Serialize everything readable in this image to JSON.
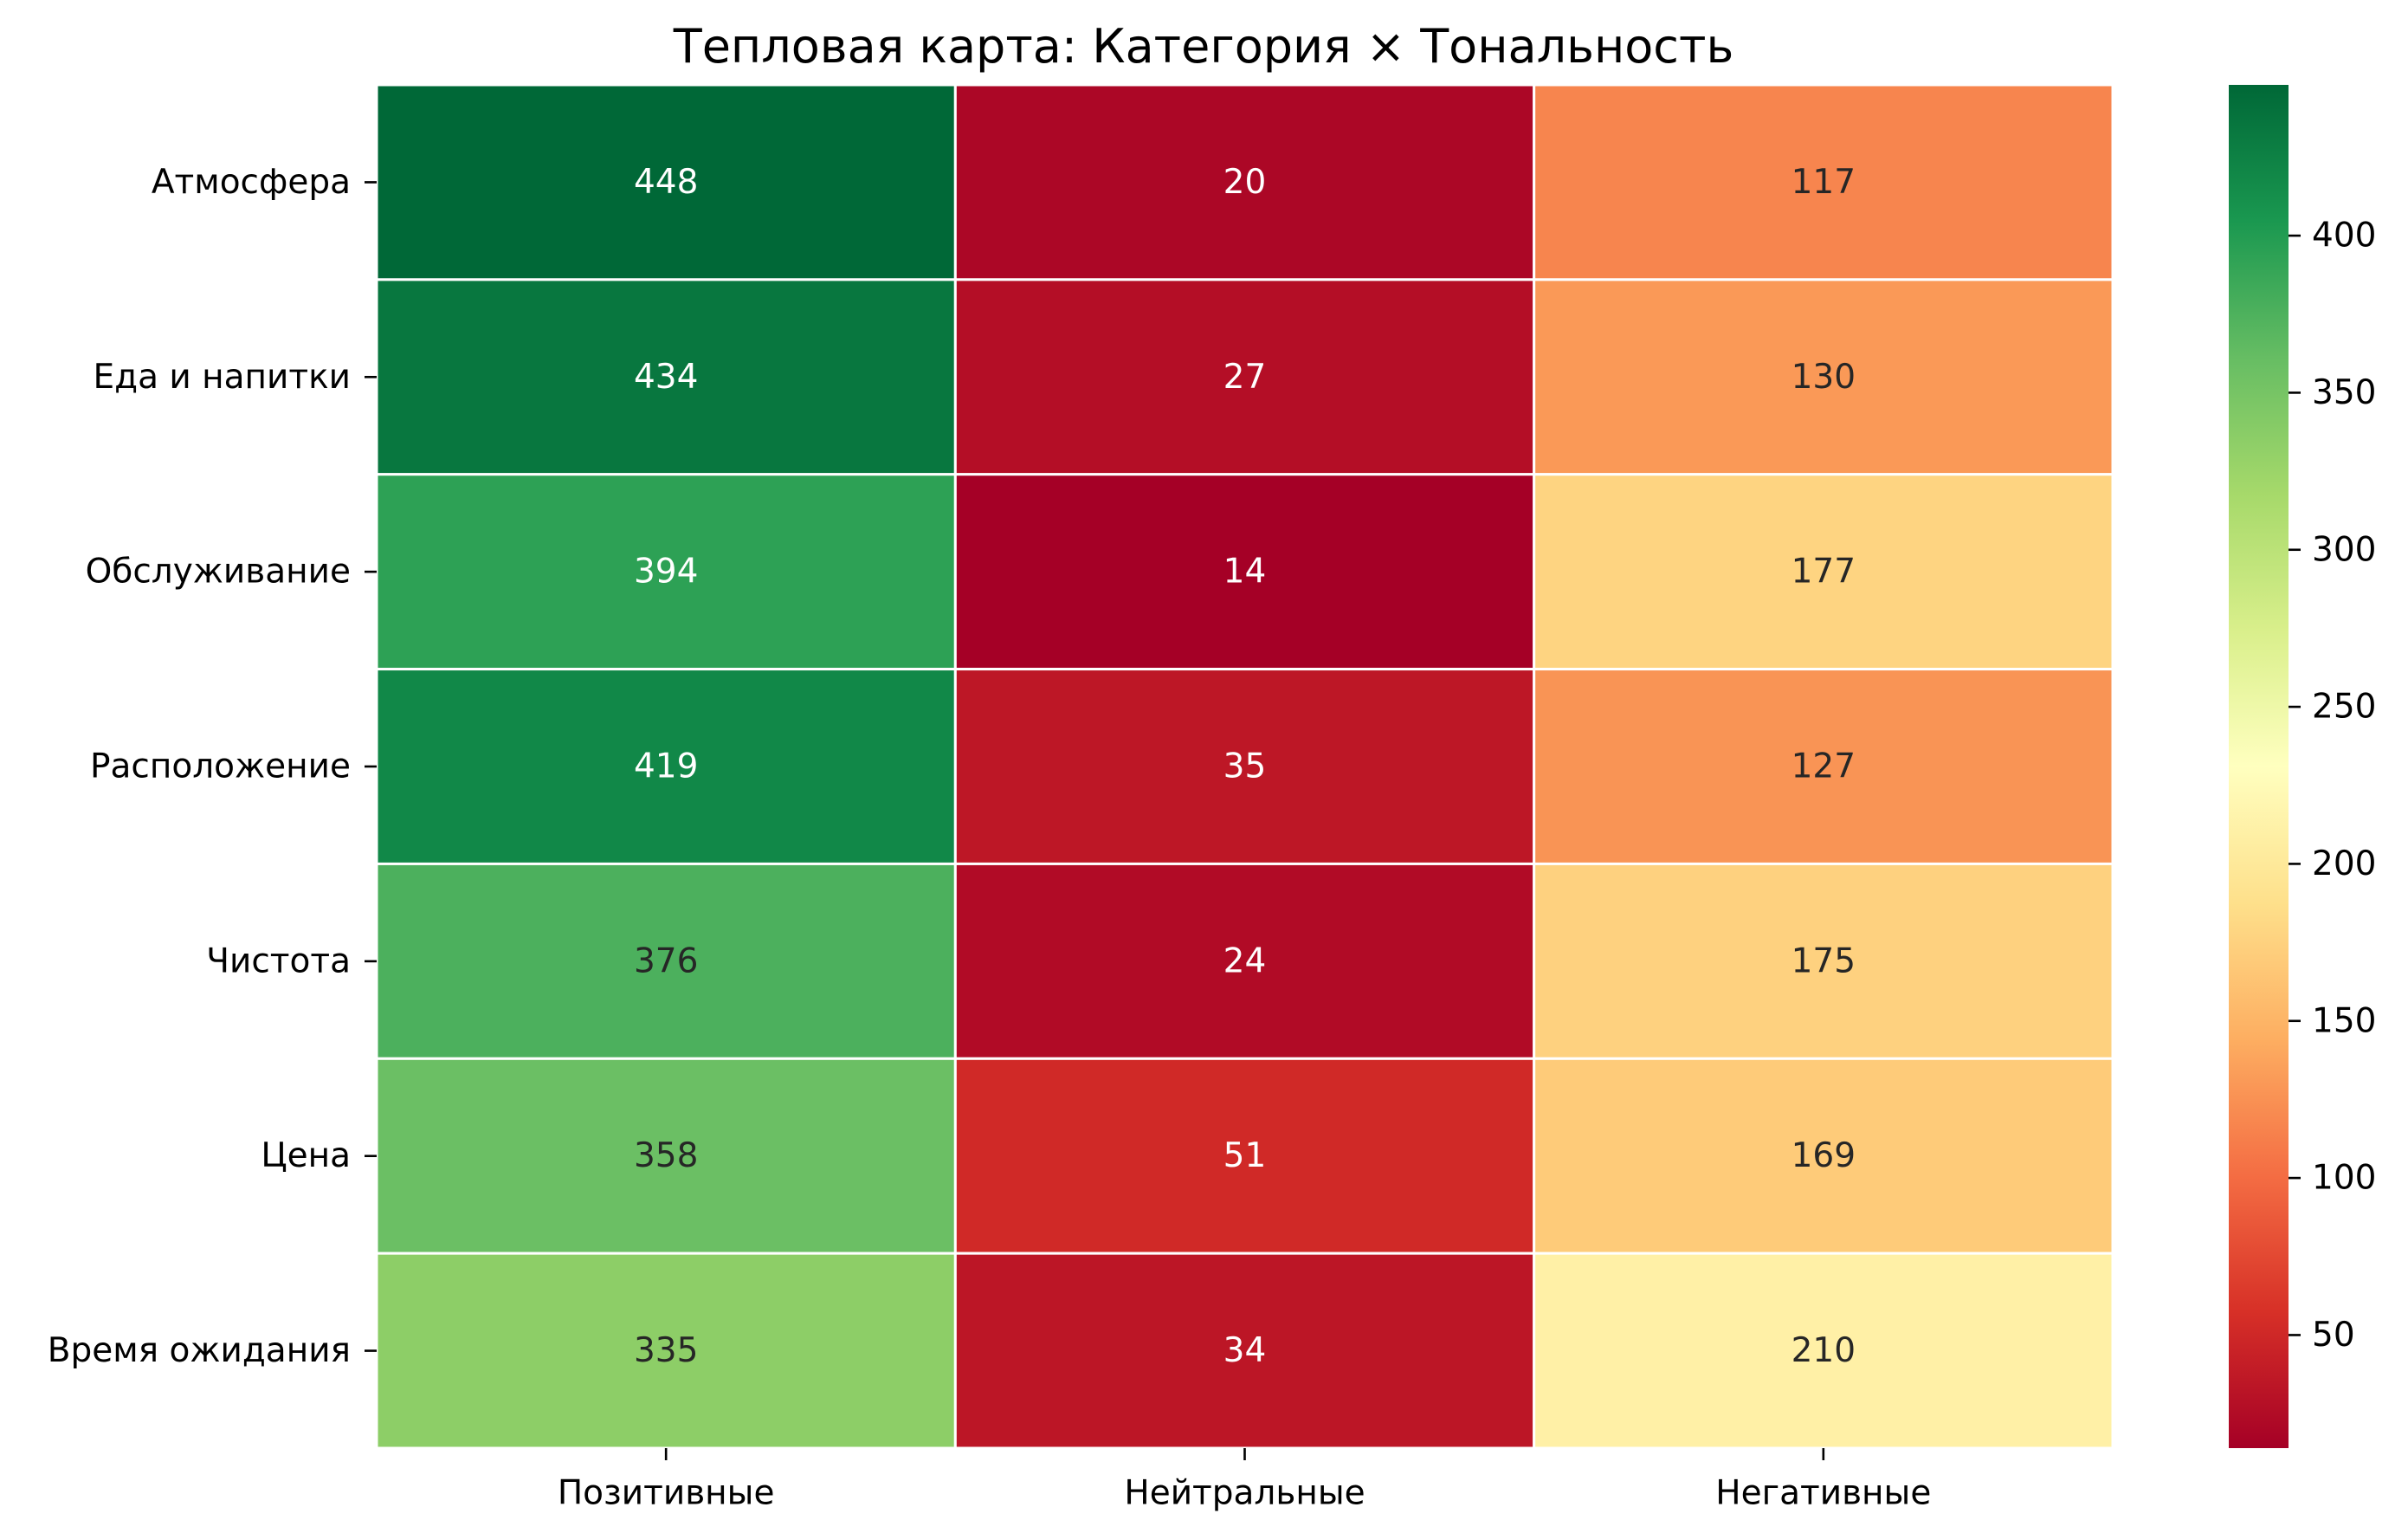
{
  "chart_data": {
    "type": "heatmap",
    "title": "Тепловая карта: Категория × Тональность",
    "xlabel": "",
    "ylabel": "",
    "x_categories": [
      "Позитивные",
      "Нейтральные",
      "Негативные"
    ],
    "y_categories": [
      "Атмосфера",
      "Еда и напитки",
      "Обслуживание",
      "Расположение",
      "Чистота",
      "Цена",
      "Время ожидания"
    ],
    "values": [
      [
        448,
        20,
        117
      ],
      [
        434,
        27,
        130
      ],
      [
        394,
        14,
        177
      ],
      [
        419,
        35,
        127
      ],
      [
        376,
        24,
        175
      ],
      [
        358,
        51,
        169
      ],
      [
        335,
        34,
        210
      ]
    ],
    "colormap": "RdYlGn",
    "vmin": 14,
    "vmax": 448,
    "colorbar_ticks": [
      50,
      100,
      150,
      200,
      250,
      300,
      350,
      400
    ],
    "annotations": true,
    "grid": false,
    "cell_border_color": "#ffffff"
  }
}
